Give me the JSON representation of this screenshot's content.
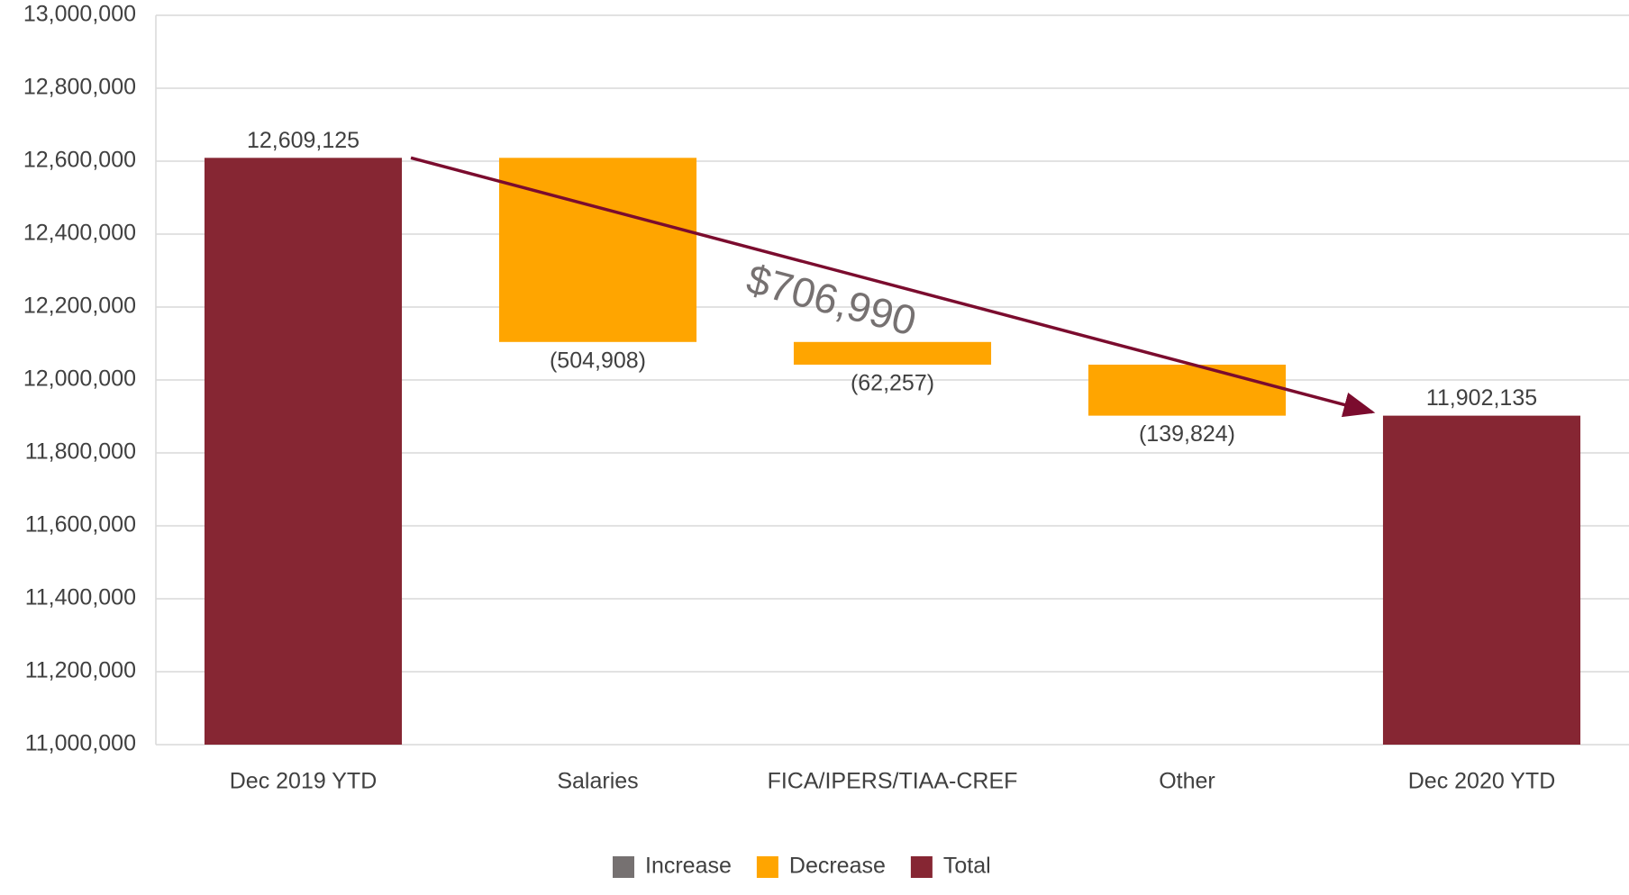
{
  "chart_data": {
    "type": "waterfall",
    "categories": [
      "Dec 2019 YTD",
      "Salaries",
      "FICA/IPERS/TIAA-CREF",
      "Other",
      "Dec 2020 YTD"
    ],
    "values": [
      12609125,
      -504908,
      -62257,
      -139824,
      11902135
    ],
    "value_labels": [
      "12,609,125",
      "(504,908)",
      "(62,257)",
      "(139,824)",
      "11,902,135"
    ],
    "kinds": [
      "Total",
      "Decrease",
      "Decrease",
      "Decrease",
      "Total"
    ],
    "legend": [
      {
        "name": "Increase",
        "color": "#767171"
      },
      {
        "name": "Decrease",
        "color": "#FFA500"
      },
      {
        "name": "Total",
        "color": "#862633"
      }
    ],
    "annotation": "$706,990",
    "arrow_color": "#7B0C2E",
    "ylim": [
      11000000,
      13000000
    ],
    "yticks": [
      {
        "value": 11000000,
        "label": "11,000,000"
      },
      {
        "value": 11200000,
        "label": "11,200,000"
      },
      {
        "value": 11400000,
        "label": "11,400,000"
      },
      {
        "value": 11600000,
        "label": "11,600,000"
      },
      {
        "value": 11800000,
        "label": "11,800,000"
      },
      {
        "value": 12000000,
        "label": "12,000,000"
      },
      {
        "value": 12200000,
        "label": "12,200,000"
      },
      {
        "value": 12400000,
        "label": "12,400,000"
      },
      {
        "value": 12600000,
        "label": "12,600,000"
      },
      {
        "value": 12800000,
        "label": "12,800,000"
      },
      {
        "value": 13000000,
        "label": "13,000,000"
      }
    ],
    "grid": true
  }
}
